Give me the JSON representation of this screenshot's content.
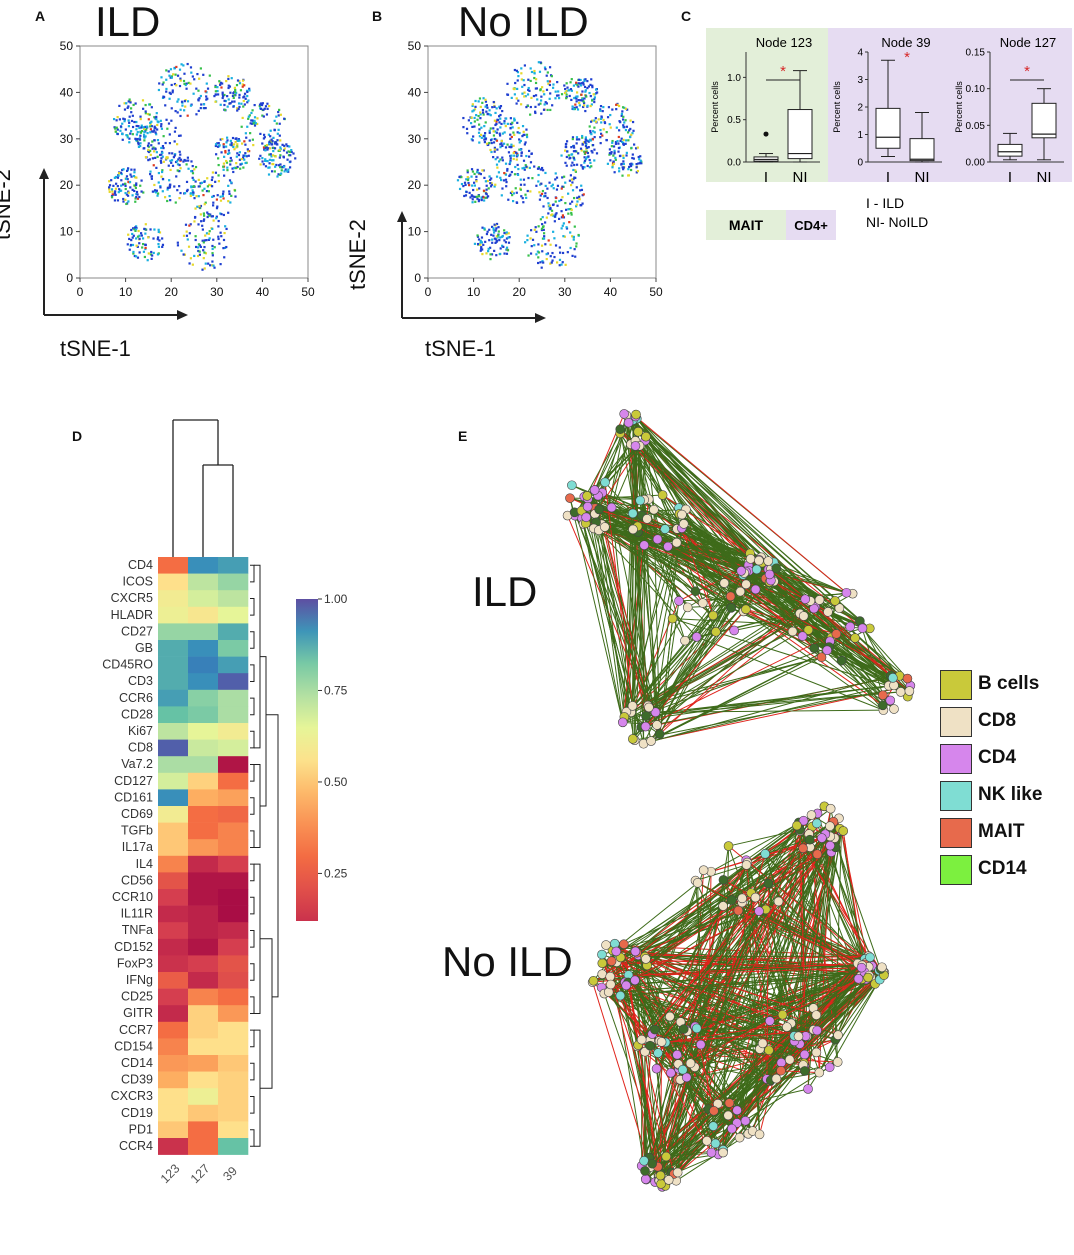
{
  "panels": {
    "A": {
      "letter": "A",
      "title": "ILD",
      "xlabel": "tSNE-1",
      "ylabel": "tSNE-2"
    },
    "B": {
      "letter": "B",
      "title": "No ILD",
      "xlabel": "tSNE-1",
      "ylabel": "tSNE-2"
    },
    "C": {
      "letter": "C"
    },
    "D": {
      "letter": "D"
    },
    "E": {
      "letter": "E",
      "label_ild": "ILD",
      "label_noild": "No ILD"
    }
  },
  "tsne_axis": {
    "x_ticks": [
      0,
      10,
      20,
      30,
      40,
      50
    ],
    "y_ticks": [
      0,
      10,
      20,
      30,
      40,
      50
    ],
    "xlim": [
      0,
      50
    ],
    "ylim": [
      0,
      50
    ]
  },
  "boxplots": {
    "ylabel": "Percent cells",
    "group_labels": {
      "mait": "MAIT",
      "cd4": "CD4+"
    },
    "key_lines": [
      "I - ILD",
      "NI- NoILD"
    ],
    "colors": {
      "mait_bg": "#e3efd9",
      "cd4_bg": "#e6dcf2",
      "star": "#d62728"
    },
    "plots": [
      {
        "title": "Node 123",
        "group": "mait",
        "ylim": [
          0,
          1.3
        ],
        "yticks": [
          "0.0",
          "0.5",
          "1.0"
        ],
        "ytick_vals": [
          0,
          0.5,
          1.0
        ],
        "categories": [
          "I",
          "NI"
        ],
        "boxes": [
          {
            "min": 0,
            "q1": 0.01,
            "med": 0.03,
            "q3": 0.06,
            "max": 0.1,
            "outlier": 0.33
          },
          {
            "min": 0,
            "q1": 0.04,
            "med": 0.1,
            "q3": 0.62,
            "max": 1.08
          }
        ],
        "significant": "*"
      },
      {
        "title": "Node 39",
        "group": "cd4",
        "ylim": [
          0,
          4
        ],
        "yticks": [
          "0",
          "1",
          "2",
          "3",
          "4"
        ],
        "ytick_vals": [
          0,
          1,
          2,
          3,
          4
        ],
        "categories": [
          "I",
          "NI"
        ],
        "boxes": [
          {
            "min": 0.2,
            "q1": 0.5,
            "med": 0.9,
            "q3": 1.95,
            "max": 3.7
          },
          {
            "min": 0,
            "q1": 0.05,
            "med": 0.1,
            "q3": 0.85,
            "max": 1.8
          }
        ],
        "significant": "*"
      },
      {
        "title": "Node 127",
        "group": "cd4",
        "ylim": [
          0,
          0.15
        ],
        "yticks": [
          "0.00",
          "0.05",
          "0.10",
          "0.15"
        ],
        "ytick_vals": [
          0,
          0.05,
          0.1,
          0.15
        ],
        "categories": [
          "I",
          "NI"
        ],
        "boxes": [
          {
            "min": 0.003,
            "q1": 0.008,
            "med": 0.014,
            "q3": 0.024,
            "max": 0.039
          },
          {
            "min": 0.003,
            "q1": 0.033,
            "med": 0.038,
            "q3": 0.08,
            "max": 0.1
          }
        ],
        "significant": "*"
      }
    ]
  },
  "heatmap": {
    "rows": [
      "CD4",
      "ICOS",
      "CXCR5",
      "HLADR",
      "CD27",
      "GB",
      "CD45RO",
      "CD3",
      "CCR6",
      "CD28",
      "Ki67",
      "CD8",
      "Va7.2",
      "CD127",
      "CD161",
      "CD69",
      "TGFb",
      "IL17a",
      "IL4",
      "CD56",
      "CCR10",
      "IL11R",
      "TNFa",
      "CD152",
      "FoxP3",
      "IFNg",
      "CD25",
      "GITR",
      "CCR7",
      "CD154",
      "CD14",
      "CD39",
      "CXCR3",
      "CD19",
      "PD1",
      "CCR4"
    ],
    "columns": [
      "123",
      "127",
      "39"
    ],
    "values": [
      [
        0.3,
        0.92,
        0.9
      ],
      [
        0.55,
        0.72,
        0.78
      ],
      [
        0.6,
        0.68,
        0.72
      ],
      [
        0.62,
        0.58,
        0.65
      ],
      [
        0.78,
        0.78,
        0.88
      ],
      [
        0.88,
        0.92,
        0.82
      ],
      [
        0.88,
        0.94,
        0.9
      ],
      [
        0.88,
        0.92,
        0.98
      ],
      [
        0.9,
        0.8,
        0.75
      ],
      [
        0.85,
        0.82,
        0.75
      ],
      [
        0.72,
        0.65,
        0.6
      ],
      [
        0.98,
        0.7,
        0.68
      ],
      [
        0.75,
        0.75,
        0.05
      ],
      [
        0.68,
        0.52,
        0.3
      ],
      [
        0.92,
        0.45,
        0.42
      ],
      [
        0.6,
        0.3,
        0.28
      ],
      [
        0.5,
        0.3,
        0.35
      ],
      [
        0.5,
        0.4,
        0.35
      ],
      [
        0.35,
        0.1,
        0.15
      ],
      [
        0.22,
        0.05,
        0.05
      ],
      [
        0.15,
        0.05,
        0.03
      ],
      [
        0.1,
        0.08,
        0.03
      ],
      [
        0.15,
        0.08,
        0.1
      ],
      [
        0.1,
        0.05,
        0.15
      ],
      [
        0.12,
        0.15,
        0.22
      ],
      [
        0.25,
        0.1,
        0.2
      ],
      [
        0.15,
        0.35,
        0.3
      ],
      [
        0.1,
        0.52,
        0.4
      ],
      [
        0.3,
        0.52,
        0.55
      ],
      [
        0.35,
        0.55,
        0.55
      ],
      [
        0.4,
        0.42,
        0.5
      ],
      [
        0.45,
        0.55,
        0.52
      ],
      [
        0.55,
        0.62,
        0.52
      ],
      [
        0.55,
        0.5,
        0.52
      ],
      [
        0.5,
        0.3,
        0.55
      ],
      [
        0.12,
        0.3,
        0.85
      ]
    ],
    "colorbar": {
      "min": 0.12,
      "max": 1.0,
      "ticks": [
        "1.00",
        "0.75",
        "0.50",
        "0.25"
      ],
      "tick_vals": [
        1.0,
        0.75,
        0.5,
        0.25
      ]
    }
  },
  "network_legend": [
    {
      "label": "B cells",
      "color": "#c9c93a"
    },
    {
      "label": "CD8",
      "color": "#efe1c5"
    },
    {
      "label": "CD4",
      "color": "#d686ec"
    },
    {
      "label": "NK like",
      "color": "#7fddd3"
    },
    {
      "label": "MAIT",
      "color": "#e76a4c"
    },
    {
      "label": "CD14",
      "color": "#7cf03f"
    }
  ],
  "colors": {
    "tsne_blue": "#1f3fd0",
    "tsne_cyan": "#19b0e0",
    "tsne_green": "#36c04a",
    "tsne_yellow": "#e6d82a",
    "tsne_red": "#e03a20",
    "edge_green": "#3e6b1a",
    "edge_red": "#e0241c",
    "dark_node": "#3d6b2b"
  }
}
